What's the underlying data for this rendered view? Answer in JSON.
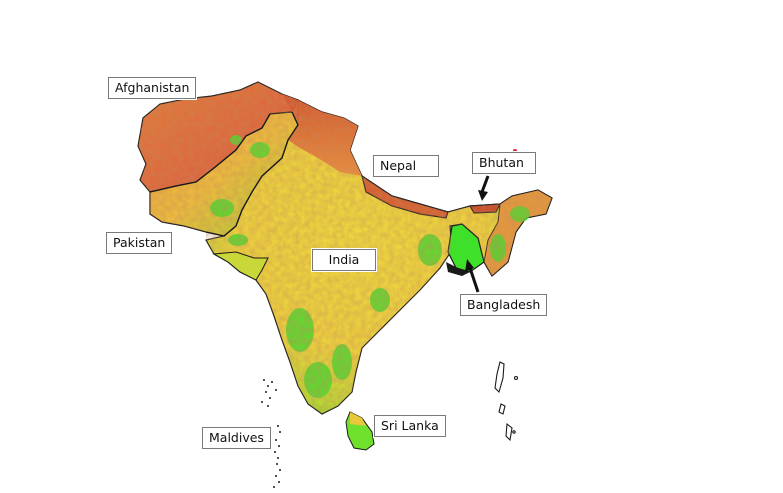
{
  "labels": {
    "afghanistan": "Afghanistan",
    "pakistan": "Pakistan",
    "nepal": "Nepal",
    "bhutan": "Bhutan",
    "india": "India",
    "bangladesh": "Bangladesh",
    "sri_lanka": "Sri Lanka",
    "maldives": "Maldives"
  },
  "colors": {
    "arid_red": "#d9512b",
    "dry_orange": "#ef8a3c",
    "moderate_yellow": "#f2e23a",
    "vegetated_green": "#3fe02a",
    "border": "#1a1a1a",
    "highlight_dot": "#e0202a"
  }
}
